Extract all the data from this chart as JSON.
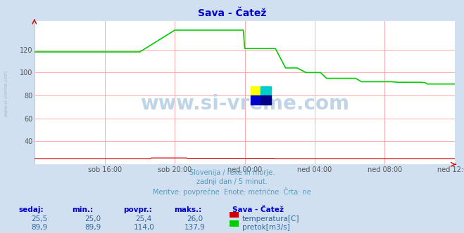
{
  "title": "Sava - Čatež",
  "title_color": "#0000cc",
  "bg_color": "#d0e0f0",
  "plot_bg_color": "#ffffff",
  "grid_color": "#ffaaaa",
  "ylim": [
    20,
    145
  ],
  "yticks": [
    40,
    60,
    80,
    100,
    120
  ],
  "x_labels": [
    "sob 16:00",
    "sob 20:00",
    "ned 00:00",
    "ned 04:00",
    "ned 08:00",
    "ned 12:00"
  ],
  "n_points": 289,
  "footer_lines": [
    "Slovenija / reke in morje.",
    "zadnji dan / 5 minut.",
    "Meritve: povprečne  Enote: metrične  Črta: ne"
  ],
  "footer_color": "#5599bb",
  "table_headers": [
    "sedaj:",
    "min.:",
    "povpr.:",
    "maks.:"
  ],
  "table_header_color": "#0000cc",
  "table_values_temp": [
    "25,5",
    "25,0",
    "25,4",
    "26,0"
  ],
  "table_values_flow": [
    "89,9",
    "89,9",
    "114,0",
    "137,9"
  ],
  "table_value_color": "#336699",
  "legend_title": "Sava - Čatež",
  "legend_title_color": "#0000cc",
  "legend_items": [
    "temperatura[C]",
    "pretok[m3/s]"
  ],
  "legend_colors": [
    "#cc0000",
    "#00cc00"
  ],
  "temp_color": "#cc0000",
  "flow_color": "#00cc00",
  "watermark_text": "www.si-vreme.com",
  "watermark_color": "#c0d4e8",
  "left_label": "www.si-vreme.com",
  "left_label_color": "#aabbcc"
}
